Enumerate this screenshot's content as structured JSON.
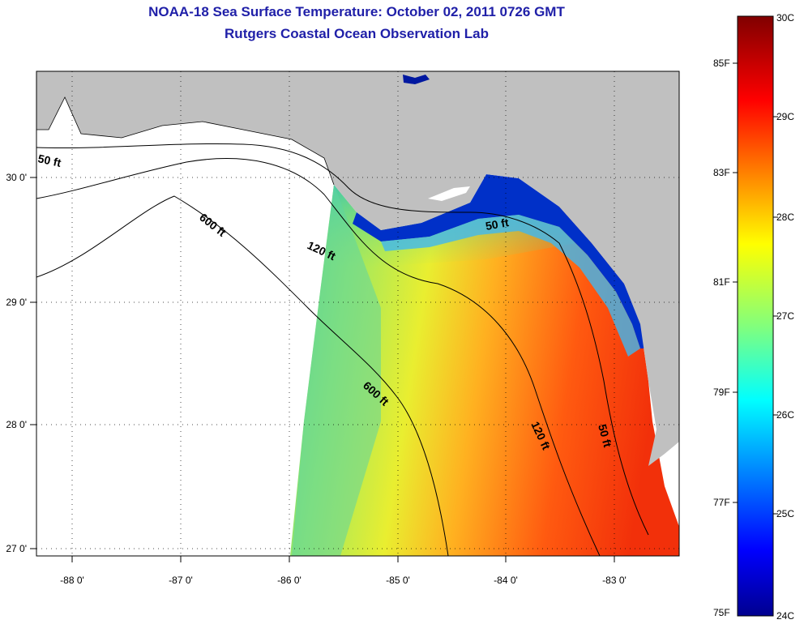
{
  "title": "NOAA-18 Sea Surface Temperature:  October 02, 2011 0726 GMT",
  "subtitle": "Rutgers Coastal Ocean Observation Lab",
  "map": {
    "lon_labels": [
      "-88 0'",
      "-87 0'",
      "-86 0'",
      "-85 0'",
      "-84 0'",
      "-83 0'"
    ],
    "lat_labels": [
      "30 0'",
      "29 0'",
      "28 0'",
      "27 0'"
    ],
    "contour_labels": {
      "c50_west": "50 ft",
      "c600_north": "600 ft",
      "c120_north": "120 ft",
      "c50_east": "50 ft",
      "c600_south": "600 ft",
      "c120_south": "120 ft",
      "c50_south": "50 ft"
    },
    "land_color": "#c0c0c0",
    "contour_color": "#000000"
  },
  "colorbar": {
    "f_labels": [
      "85F",
      "83F",
      "81F",
      "79F",
      "77F",
      "75F"
    ],
    "c_labels": [
      "30C",
      "29C",
      "28C",
      "27C",
      "26C",
      "25C",
      "24C"
    ],
    "range_c": [
      24,
      30
    ],
    "range_f": [
      75,
      86
    ],
    "colormap": "jet"
  }
}
